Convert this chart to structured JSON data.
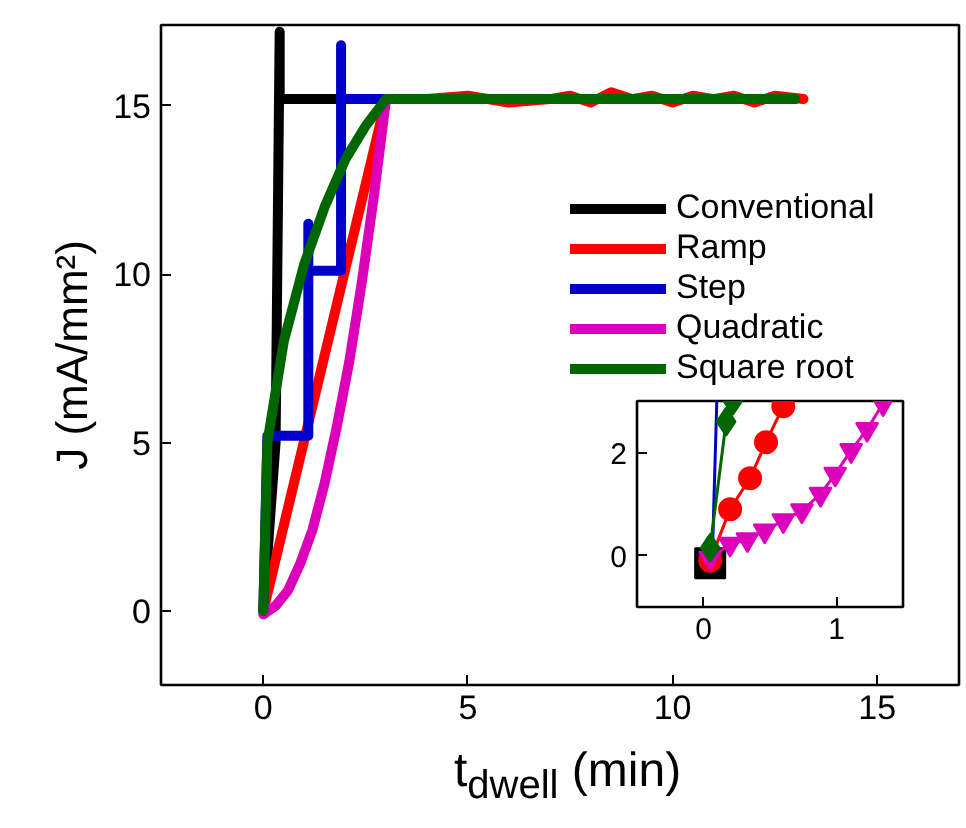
{
  "chart_data": [
    {
      "type": "line",
      "xlabel": "t$_{dwell}$ (min)",
      "ylabel": "J (mA/mm²)",
      "xlim": [
        -2.5,
        17
      ],
      "ylim": [
        -2.2,
        17.4
      ],
      "xticks": [
        0,
        5,
        10,
        15
      ],
      "yticks": [
        0,
        5,
        10,
        15
      ],
      "grid": false,
      "legend": "top right",
      "line_style": "solid",
      "series": [
        {
          "name": "Conventional",
          "color": "#000000",
          "x": [
            0,
            0.3,
            0.4,
            0.4,
            13
          ],
          "values": [
            0,
            5,
            17.2,
            15.2,
            15.2
          ]
        },
        {
          "name": "Ramp",
          "color": "#ff0000",
          "x": [
            0,
            3,
            4,
            5,
            6,
            7,
            7.5,
            8,
            8.5,
            9,
            9.5,
            10,
            10.5,
            11,
            11.5,
            12,
            12.5,
            13.2
          ],
          "values": [
            0,
            15.2,
            15.2,
            15.3,
            15.1,
            15.2,
            15.3,
            15.1,
            15.4,
            15.2,
            15.3,
            15.1,
            15.3,
            15.2,
            15.3,
            15.1,
            15.3,
            15.2
          ]
        },
        {
          "name": "Step",
          "color": "#0000cc",
          "x": [
            0,
            0.1,
            1.1,
            1.1,
            1.1,
            1.9,
            1.9,
            1.9,
            3
          ],
          "values": [
            0,
            5.2,
            5.2,
            11.5,
            10.1,
            10.1,
            16.8,
            15.2,
            15.2
          ]
        },
        {
          "name": "Quadratic",
          "color": "#dd00bb",
          "x": [
            0,
            0.3,
            0.6,
            0.9,
            1.2,
            1.5,
            1.8,
            2.1,
            2.4,
            2.7,
            3
          ],
          "values": [
            -0.1,
            0.15,
            0.6,
            1.4,
            2.4,
            3.8,
            5.5,
            7.4,
            9.7,
            12.3,
            15.2
          ]
        },
        {
          "name": "Square root",
          "color": "#006600",
          "x": [
            0,
            0.1,
            0.5,
            1,
            1.5,
            2,
            2.5,
            3,
            6,
            9,
            13
          ],
          "values": [
            0,
            5,
            8,
            10.3,
            12,
            13.4,
            14.4,
            15.2,
            15.2,
            15.2,
            15.2
          ]
        }
      ]
    },
    {
      "type": "line",
      "xlim": [
        -0.5,
        1.5
      ],
      "ylim": [
        -1,
        3
      ],
      "xticks": [
        0,
        1
      ],
      "yticks": [
        0,
        2
      ],
      "grid": false,
      "legend": false,
      "series": [
        {
          "type": "scatter",
          "color": "#000000",
          "marker": "square",
          "x": [
            0.05
          ],
          "values": [
            -0.15
          ]
        },
        {
          "color": "#ff0000",
          "marker": "circle",
          "x": [
            0.05,
            0.2,
            0.35,
            0.47,
            0.6
          ],
          "values": [
            -0.1,
            0.9,
            1.5,
            2.2,
            2.9
          ]
        },
        {
          "color": "#0000cc",
          "marker": "none",
          "x": [
            0.03,
            0.07,
            0.1
          ],
          "values": [
            0.1,
            0.3,
            3
          ]
        },
        {
          "color": "#dd00bb",
          "marker": "triangle",
          "x": [
            0.05,
            0.2,
            0.33,
            0.46,
            0.6,
            0.74,
            0.88,
            0.99,
            1.11,
            1.23,
            1.35
          ],
          "values": [
            -0.05,
            0.22,
            0.31,
            0.48,
            0.68,
            0.87,
            1.19,
            1.58,
            2.04,
            2.45,
            2.95
          ]
        },
        {
          "color": "#006600",
          "marker": "diamond",
          "x": [
            0.05,
            0.17,
            0.22
          ],
          "values": [
            0.15,
            2.6,
            3
          ]
        }
      ]
    }
  ]
}
